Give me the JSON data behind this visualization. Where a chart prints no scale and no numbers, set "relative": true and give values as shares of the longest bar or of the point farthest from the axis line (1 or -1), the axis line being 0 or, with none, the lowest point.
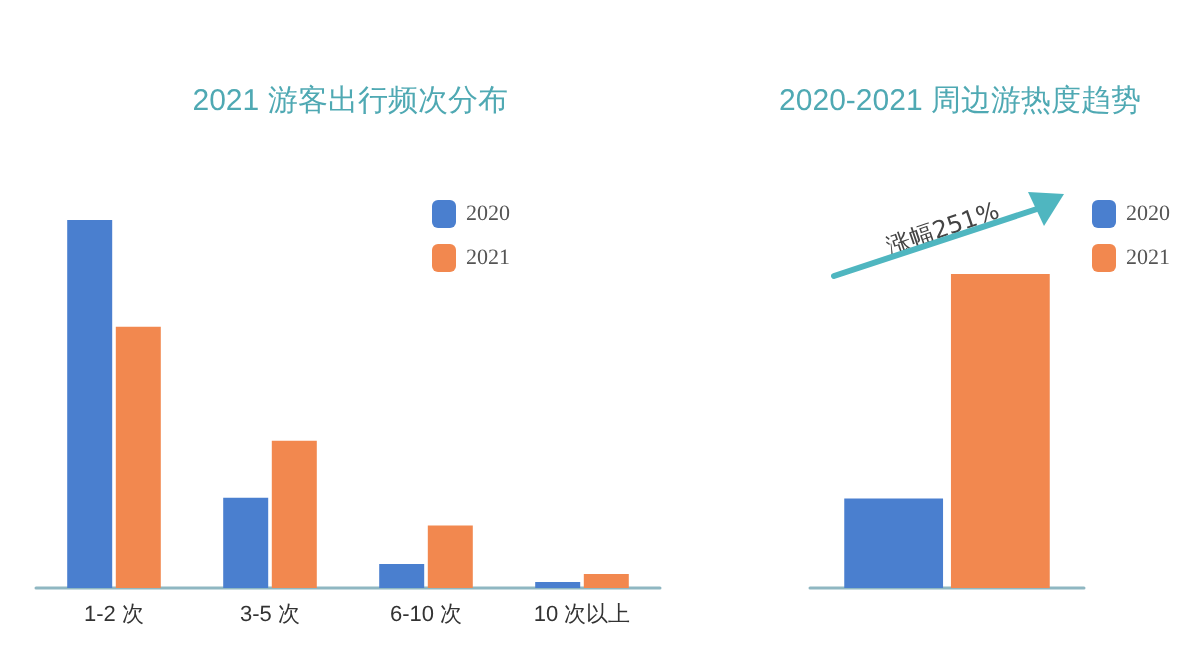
{
  "chart_data": [
    {
      "type": "bar",
      "title": "2021 游客出行频次分布",
      "categories": [
        "1-2 次",
        "3-5 次",
        "6-10 次",
        "10 次以上"
      ],
      "relative": true,
      "legend": "top right",
      "series": [
        {
          "name": "2020",
          "color": "#4a7fcf",
          "values": [
            1,
            0.245,
            0.065,
            0.016
          ]
        },
        {
          "name": "2021",
          "color": "#f2884f",
          "values": [
            0.71,
            0.4,
            0.17,
            0.038
          ]
        }
      ]
    },
    {
      "type": "bar",
      "title": "2020-2021 周边游热度趋势",
      "categories": [
        null
      ],
      "relative": true,
      "legend": "top right",
      "annotations": [
        "涨幅251%"
      ],
      "series": [
        {
          "name": "2020",
          "color": "#4a7fcf",
          "values": [
            0.285
          ]
        },
        {
          "name": "2021",
          "color": "#f2884f",
          "values": [
            1
          ]
        }
      ]
    }
  ]
}
